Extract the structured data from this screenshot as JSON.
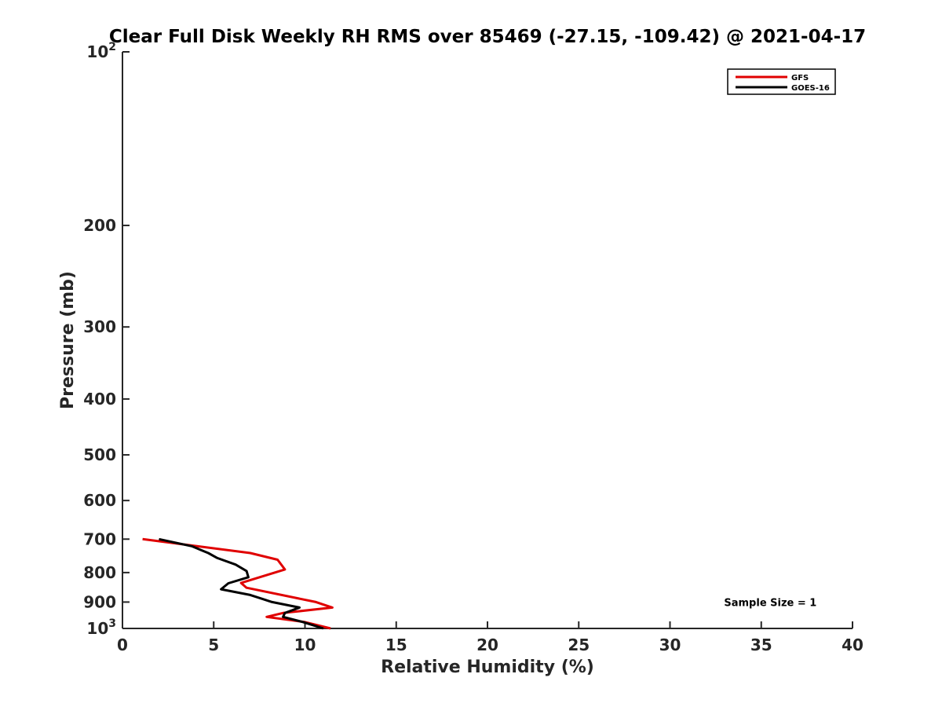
{
  "chart_data": {
    "type": "line",
    "title": "Clear Full Disk Weekly RH RMS over 85469 (-27.15, -109.42) @ 2021-04-17",
    "xlabel": "Relative Humidity (%)",
    "ylabel": "Pressure (mb)",
    "xlim": [
      0,
      40
    ],
    "ylim": [
      100,
      1000
    ],
    "y_scale": "log",
    "y_reversed": true,
    "grid": false,
    "x_ticks": [
      0,
      5,
      10,
      15,
      20,
      25,
      30,
      35,
      40
    ],
    "x_tick_labels": [
      "0",
      "5",
      "10",
      "15",
      "20",
      "25",
      "30",
      "35",
      "40"
    ],
    "y_ticks": [
      {
        "value": 100,
        "base": "10",
        "sup": "2"
      },
      {
        "value": 200,
        "label": "200"
      },
      {
        "value": 300,
        "label": "300"
      },
      {
        "value": 400,
        "label": "400"
      },
      {
        "value": 500,
        "label": "500"
      },
      {
        "value": 600,
        "label": "600"
      },
      {
        "value": 700,
        "label": "700"
      },
      {
        "value": 800,
        "label": "800"
      },
      {
        "value": 900,
        "label": "900"
      },
      {
        "value": 1000,
        "base": "10",
        "sup": "3"
      }
    ],
    "legend_position": "top-right",
    "series": [
      {
        "name": "GFS",
        "color": "#e00000",
        "x": [
          1.1,
          7.0,
          8.5,
          8.9,
          6.5,
          6.8,
          10.6,
          11.5,
          8.8,
          7.9,
          10.0,
          11.4
        ],
        "y": [
          700,
          740,
          760,
          790,
          834,
          850,
          900,
          920,
          940,
          955,
          975,
          1000
        ]
      },
      {
        "name": "GOES-16",
        "color": "#000000",
        "x": [
          2.0,
          3.8,
          4.7,
          5.2,
          6.2,
          6.8,
          6.9,
          5.8,
          5.4,
          7.0,
          8.2,
          9.7,
          8.9,
          8.8,
          9.9,
          11.0
        ],
        "y": [
          700,
          720,
          740,
          755,
          775,
          795,
          815,
          835,
          855,
          875,
          900,
          920,
          940,
          955,
          975,
          1000
        ]
      }
    ],
    "annotations": [
      {
        "text": "Sample Size = 1",
        "x": 35.5,
        "y": 900
      }
    ]
  }
}
